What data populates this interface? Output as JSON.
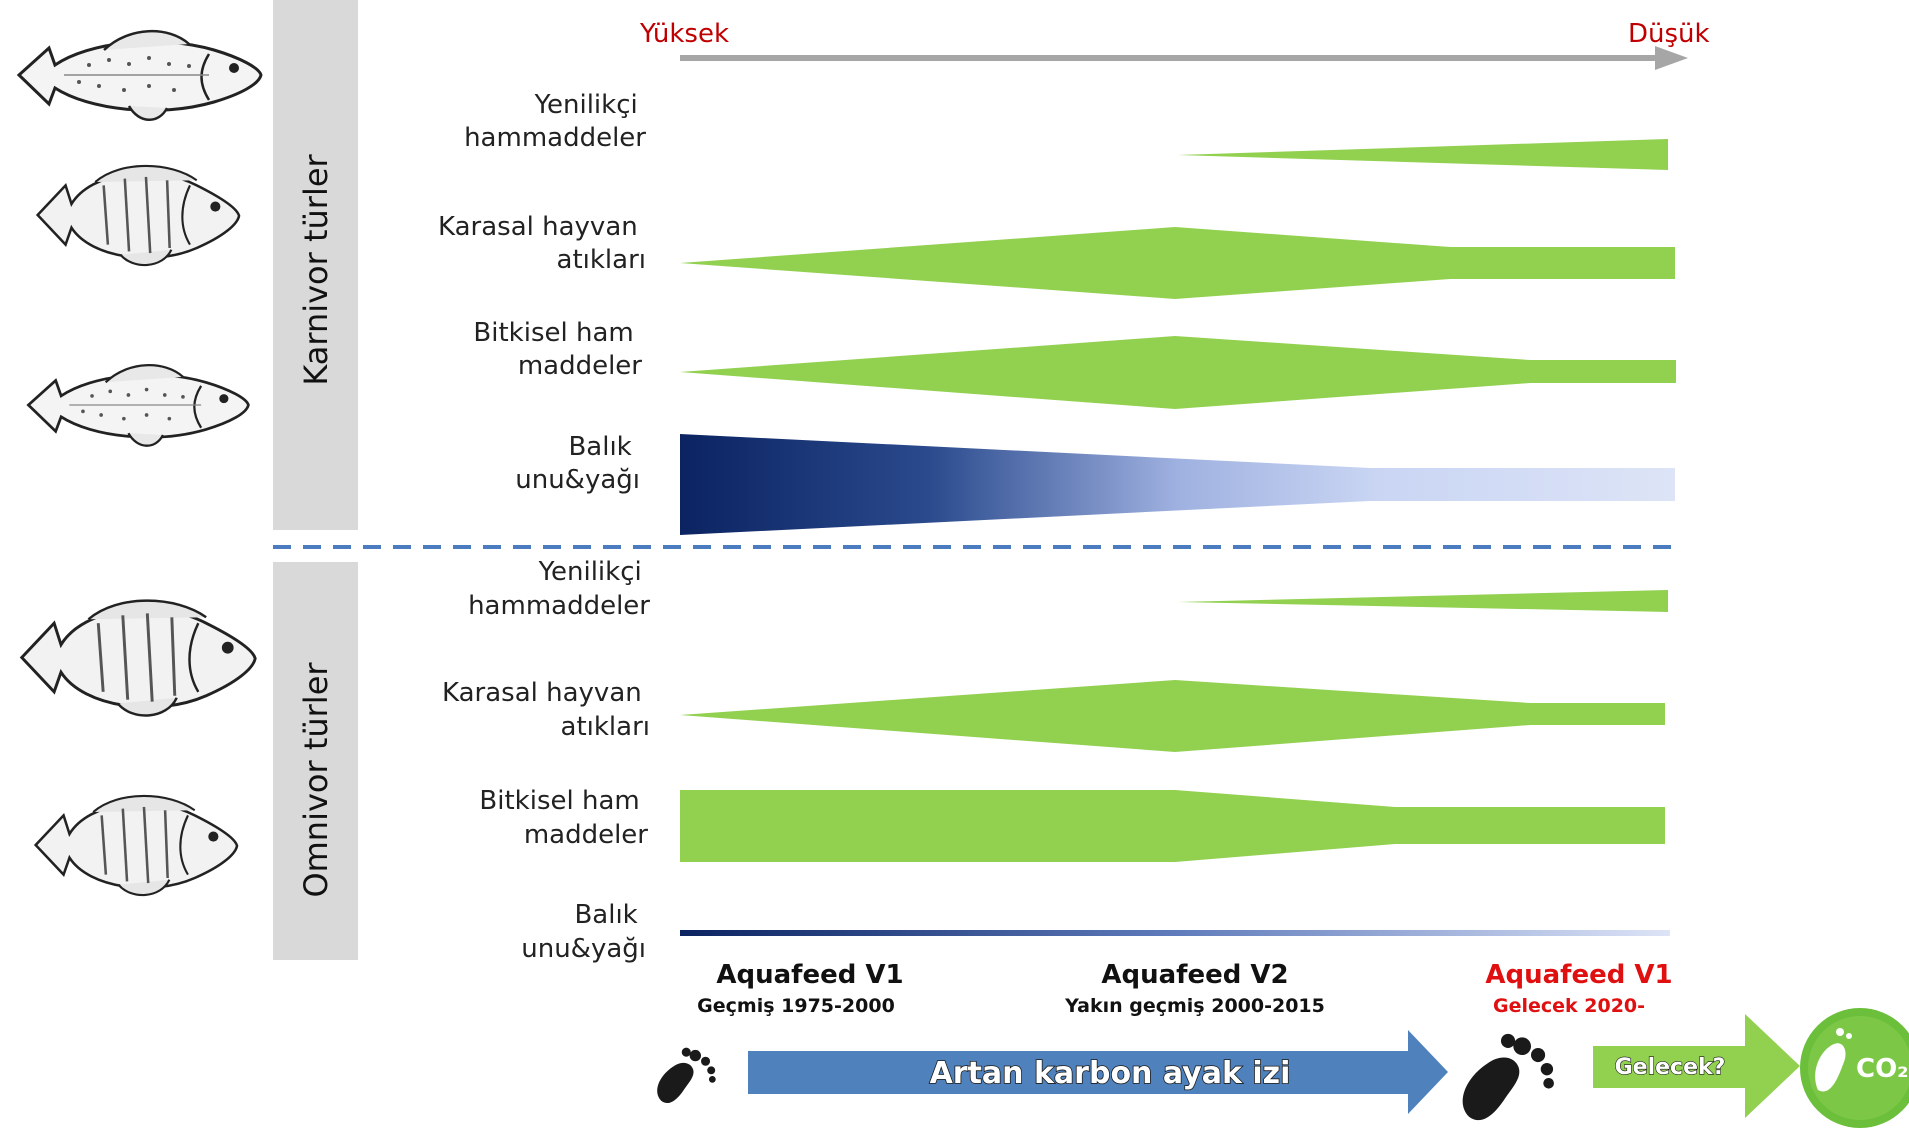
{
  "scale": {
    "left_label": "Yüksek",
    "right_label": "Düşük"
  },
  "groups": [
    {
      "label": "Karnivor türler",
      "rows": [
        {
          "label": [
            "Yenilikçi",
            "hammaddeler"
          ],
          "color": "#92d050"
        },
        {
          "label": [
            "Karasal hayvan",
            "atıkları"
          ],
          "color": "#92d050"
        },
        {
          "label": [
            "Bitkisel ham",
            "maddeler"
          ],
          "color": "#92d050"
        },
        {
          "label": [
            "Balık",
            "unu&yağı"
          ],
          "color": "#0b2361"
        }
      ]
    },
    {
      "label": "Omnivor türler",
      "rows": [
        {
          "label": [
            "Yenilikçi",
            "hammaddeler"
          ],
          "color": "#92d050"
        },
        {
          "label": [
            "Karasal hayvan",
            "atıkları"
          ],
          "color": "#92d050"
        },
        {
          "label": [
            "Bitkisel ham",
            "maddeler"
          ],
          "color": "#92d050"
        },
        {
          "label": [
            "Balık",
            "unu&yağı"
          ],
          "color": "#0b2361"
        }
      ]
    }
  ],
  "eras": [
    {
      "title": "Aquafeed V1",
      "subtitle": "Geçmiş 1975-2000",
      "color": "#111111"
    },
    {
      "title": "Aquafeed V2",
      "subtitle": "Yakın geçmiş 2000-2015",
      "color": "#111111"
    },
    {
      "title": "Aquafeed V1",
      "subtitle": "Gelecek 2020-",
      "color": "#e01010"
    }
  ],
  "footer": {
    "carbon_arrow": "Artan karbon ayak izi",
    "future_arrow": "Gelecek?",
    "co2_badge": "CO₂"
  },
  "colors": {
    "green": "#92d050",
    "navy": "#0b2361",
    "light_blue": "#dde4f7",
    "carbon_arrow": "#4f81bd",
    "future_arrow": "#92d050",
    "accent_red": "#c00000",
    "dashed_line": "#4a7cbf",
    "side_panel": "#d9d9d9"
  },
  "icons": [
    "trout-fish-icon",
    "sea-bream-fish-icon",
    "sea-bass-fish-icon",
    "tilapia-fish-icon",
    "carp-fish-icon",
    "footprint-icon",
    "co2-footprint-badge-icon"
  ]
}
